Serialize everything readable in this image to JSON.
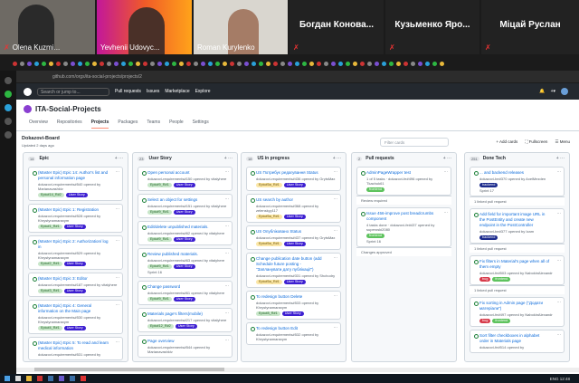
{
  "video": {
    "participants": [
      "Olena Kuzmi...",
      "Yevhenii Udovyc...",
      "Roman Kurylenko",
      "Богдан Конова...",
      "Кузьменко Яро...",
      "Міцай Руслан"
    ]
  },
  "browser": {
    "url": "github.com/orgs/ita-social-projects/projects/2"
  },
  "github": {
    "search": "Search or jump to...",
    "nav": [
      "Pull requests",
      "Issues",
      "Marketplace",
      "Explore"
    ]
  },
  "org": {
    "name": "ITA-Social-Projects",
    "tabs": [
      "Overview",
      "Repositories",
      "Projects",
      "Packages",
      "Teams",
      "People",
      "Settings"
    ],
    "active_tab": "Projects"
  },
  "board": {
    "name": "Dokazovi-Board",
    "updated": "Updated 2 days ago",
    "filter_placeholder": "Filter cards",
    "add_cards": "Add cards",
    "fullscreen": "Fullscreen",
    "menu": "Menu"
  },
  "columns": [
    {
      "count": "14",
      "title": "Epic",
      "cards": [
        {
          "title": "(Master Epic) Epic 14: Author's list and personal information page",
          "sub": "dokazovi-requirements#540 opened by Marianavashkiv",
          "labels": [
            "Epic#14_R#2",
            "User Story"
          ]
        },
        {
          "title": "(Master Epic) Epic 1: Registration",
          "sub": "dokazovi-requirements#528 opened by Khrystynamaraxym",
          "labels": [
            "Epic#1_R#1",
            "User Story"
          ]
        },
        {
          "title": "(Master Epic) Epic 2: Authorization/ log in",
          "sub": "dokazovi-requirements#529 opened by Khrystynamaraxym",
          "labels": [
            "Epic#2_R#1",
            "User Story"
          ]
        },
        {
          "title": "(Master Epic) Epic 3: Editor",
          "sub": "dokazovi-requirements#187 opened by vitalyhere",
          "labels": [
            "Epic#3_R#1",
            "User Story"
          ]
        },
        {
          "title": "(Master Epic) Epic 4: General information on the Main page",
          "sub": "dokazovi-requirements#530 opened by Khrystynamaraxym",
          "labels": [
            "Epic#4_R#1",
            "User Story"
          ]
        },
        {
          "title": "(Master Epic) Epic 5: To read and learn medical information",
          "sub": "dokazovi-requirements#531 opened by",
          "labels": []
        }
      ]
    },
    {
      "count": "23",
      "title": "User Story",
      "cards": [
        {
          "title": "Open personal account",
          "sub": "dokazovi-requirements#150 opened by vitalyhere",
          "labels": [
            "Epic#9_R#1",
            "User Story"
          ]
        },
        {
          "title": "Select an object for settings",
          "sub": "dokazovi-requirements#151 opened by vitalyhere",
          "labels": [
            "Epic#9_R#1",
            "User Story"
          ]
        },
        {
          "title": "Edit/delete unpublished materials.",
          "sub": "dokazovi-requirements#62 opened by vitalyhere",
          "labels": [
            "Epic#9_R#1",
            "User Story"
          ]
        },
        {
          "title": "Review published materials.",
          "sub": "dokazovi-requirements#63 opened by vitalyhere",
          "labels": [
            "Epic#9_R#1",
            "User Story"
          ],
          "meta": "Sprint 16"
        },
        {
          "title": "Change password",
          "sub": "dokazovi-requirements#61 opened by vitalyhere",
          "labels": [
            "Epic#9_R#1",
            "User Story"
          ]
        },
        {
          "title": "Materials page's filters(mobile)",
          "sub": "dokazovi-requirements#217 opened by vitalyhere",
          "labels": [
            "Epic#12_R#2",
            "User Story"
          ]
        },
        {
          "title": "Page overview",
          "sub": "dokazovi-requirements#544 opened by Marianavashkiv",
          "labels": []
        }
      ]
    },
    {
      "count": "18",
      "title": "US in progress",
      "cards": [
        {
          "title": "US Потребує редагування Status",
          "sub": "dokazovi-requirements#436 opened by GrytsMax",
          "labels": [
            "Epic#5a_R#1",
            "User Story"
          ]
        },
        {
          "title": "US search by author",
          "sub": "dokazovi-requirements#368 opened by zelenskyy117",
          "labels": [
            "Epic#5a_R#1",
            "User Story"
          ]
        },
        {
          "title": "US Опубліковано Status",
          "sub": "dokazovi-requirements#437 opened by GrytsMax",
          "labels": [
            "Epic#5a_R#1",
            "User Story"
          ]
        },
        {
          "title": "Change publication date button (add Schedule future posting - \"Запланувати дату публікації\")",
          "sub": "dokazovi-requirements#331 opened by Shchodry",
          "labels": [
            "Epic#5a_R#1",
            "User Story"
          ]
        },
        {
          "title": "To redesign button Delete",
          "sub": "dokazovi-requirements#533 opened by Khrystynamaraxym",
          "labels": [
            "Epic#8_R#1",
            "User Story"
          ]
        },
        {
          "title": "To redesign button Edit",
          "sub": "dokazovi-requirements#532 opened by Khrystynamaraxym",
          "labels": []
        }
      ]
    },
    {
      "count": "2",
      "title": "Pull requests",
      "cards": [
        {
          "title": "AdminPageWrapper test",
          "sub": "1 of 5 tasks · dokazovi-fe#496 opened by Tkachuk61",
          "labels": [
            "frontend"
          ],
          "foot": "Review required"
        },
        {
          "title": "Issue 456-improve post breadcrumbs component",
          "sub": "4 tasks done · dokazovi-fe#437 opened by superoski2080",
          "labels": [
            "frontend"
          ],
          "meta": "Sprint 16",
          "foot": "Changes approved"
        }
      ]
    },
    {
      "count": "251",
      "title": "Done Tech",
      "cards": [
        {
          "title": "... and backend releases",
          "sub": "dokazovi-be#370 opened by AxelMezden",
          "labels": [
            "backend"
          ],
          "meta": "Sprint 17",
          "foot": "1 linked pull request"
        },
        {
          "title": "Add field for important image URL in the PostEntity and create new endpoint in the PostController",
          "sub": "dokazovi-be#377 opened by Izam",
          "labels": [
            "backend"
          ],
          "foot": "1 linked pull request"
        },
        {
          "title": "Fix filters in Material's page when all of them empty",
          "sub": "dokazovi-fe#503 opened by NabokinAlexandr",
          "labels": [
            "bug",
            "frontend"
          ],
          "foot": "1 linked pull request"
        },
        {
          "title": "Fix sorting in Admin page (\"Додати матеріали\")",
          "sub": "dokazovi-fe#497 opened by NabokinAlexandr",
          "labels": [
            "bug",
            "frontend"
          ]
        },
        {
          "title": "Sort filter checkboxes in alphabet order in Materials page",
          "sub": "dokazovi-fe#514 opened by",
          "labels": []
        }
      ]
    }
  ],
  "label_colors": {
    "User Story": "#3d1fd1",
    "frontend": "#5ec35e",
    "backend": "#1b2a8c",
    "bug": "#d73a4a",
    "epic": "#c8e6c9",
    "epic_progress": "#fbe6a6"
  },
  "taskbar": {
    "lang": "ENG",
    "time": "12:48"
  }
}
